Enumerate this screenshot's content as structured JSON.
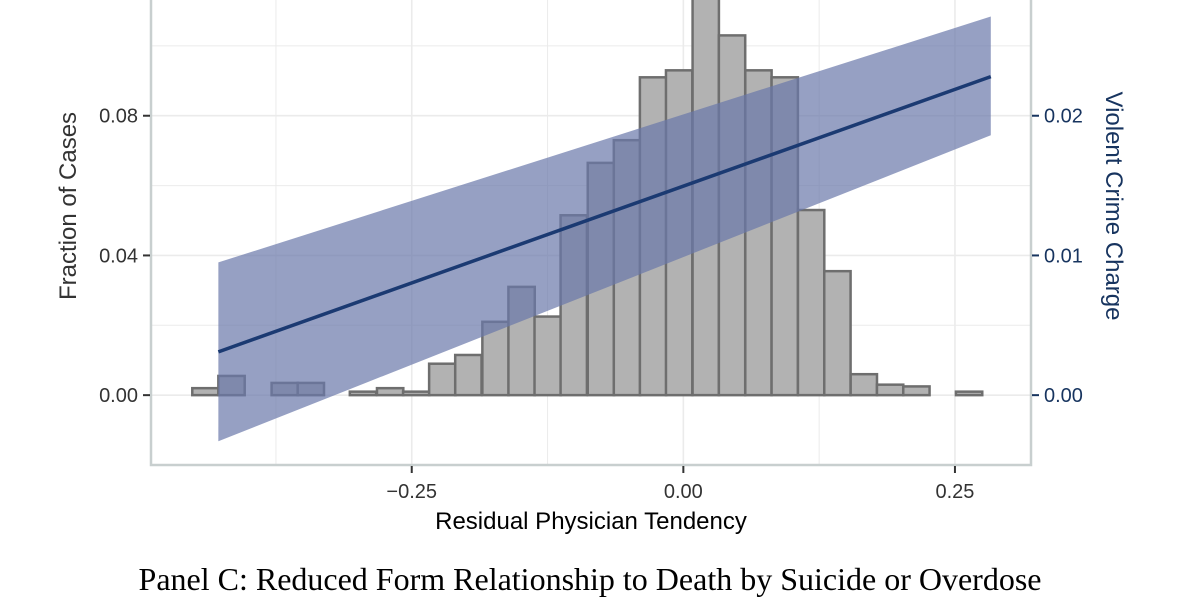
{
  "chart_data": {
    "type": "histogram+line",
    "caption": "Panel C: Reduced Form Relationship to Death by Suicide or Overdose",
    "xlabel": "Residual Physician Tendency",
    "ylabel_left": "Fraction of Cases",
    "ylabel_right": "Violent Crime Charge",
    "xlim": [
      -0.49,
      0.32
    ],
    "ylim_left": [
      -0.02,
      0.116
    ],
    "ylim_right": [
      -0.005,
      0.029
    ],
    "x_ticks": [
      -0.25,
      0.0,
      0.25
    ],
    "x_tick_labels": [
      "−0.25",
      "0.00",
      "0.25"
    ],
    "x_minor_gridlines": [
      -0.375,
      -0.125,
      0.125
    ],
    "y_left_ticks": [
      0.0,
      0.04,
      0.08
    ],
    "y_left_tick_labels": [
      "0.00",
      "0.04",
      "0.08"
    ],
    "y_right_ticks": [
      0.0,
      0.01,
      0.02
    ],
    "y_right_tick_labels": [
      "0.00",
      "0.01",
      "0.02"
    ],
    "histogram": {
      "bin_width": 0.02424,
      "bins": [
        {
          "x0": -0.452,
          "value": 0.002
        },
        {
          "x0": -0.428,
          "value": 0.0055
        },
        {
          "x0": -0.404,
          "value": 0.0
        },
        {
          "x0": -0.379,
          "value": 0.0035
        },
        {
          "x0": -0.355,
          "value": 0.0035
        },
        {
          "x0": -0.331,
          "value": 0.0
        },
        {
          "x0": -0.307,
          "value": 0.001
        },
        {
          "x0": -0.282,
          "value": 0.002
        },
        {
          "x0": -0.258,
          "value": 0.001
        },
        {
          "x0": -0.234,
          "value": 0.009
        },
        {
          "x0": -0.21,
          "value": 0.0115
        },
        {
          "x0": -0.185,
          "value": 0.021
        },
        {
          "x0": -0.161,
          "value": 0.031
        },
        {
          "x0": -0.137,
          "value": 0.0225
        },
        {
          "x0": -0.113,
          "value": 0.0515
        },
        {
          "x0": -0.088,
          "value": 0.0665
        },
        {
          "x0": -0.064,
          "value": 0.073
        },
        {
          "x0": -0.04,
          "value": 0.091
        },
        {
          "x0": -0.016,
          "value": 0.093
        },
        {
          "x0": 0.0085,
          "value": 0.118
        },
        {
          "x0": 0.0327,
          "value": 0.103
        },
        {
          "x0": 0.057,
          "value": 0.093
        },
        {
          "x0": 0.0812,
          "value": 0.091
        },
        {
          "x0": 0.1055,
          "value": 0.053
        },
        {
          "x0": 0.1297,
          "value": 0.0355
        },
        {
          "x0": 0.154,
          "value": 0.006
        },
        {
          "x0": 0.1782,
          "value": 0.003
        },
        {
          "x0": 0.2024,
          "value": 0.0025
        },
        {
          "x0": 0.2267,
          "value": 0.0
        },
        {
          "x0": 0.2509,
          "value": 0.001
        }
      ]
    },
    "fit_line": {
      "x": [
        -0.428,
        0.283
      ],
      "y": [
        0.0031,
        0.0228
      ],
      "ci_lower": [
        -0.0033,
        0.0186
      ],
      "ci_upper": [
        0.0095,
        0.0271
      ]
    },
    "colors": {
      "bar_fill": "#b2b2b2",
      "bar_stroke": "#6e6e6e",
      "line": "#1b3a72",
      "ribbon": "#6a78aa",
      "right_axis": "#17345f",
      "grid": "#ebebeb",
      "panel_border": "#c8cfcf"
    }
  }
}
